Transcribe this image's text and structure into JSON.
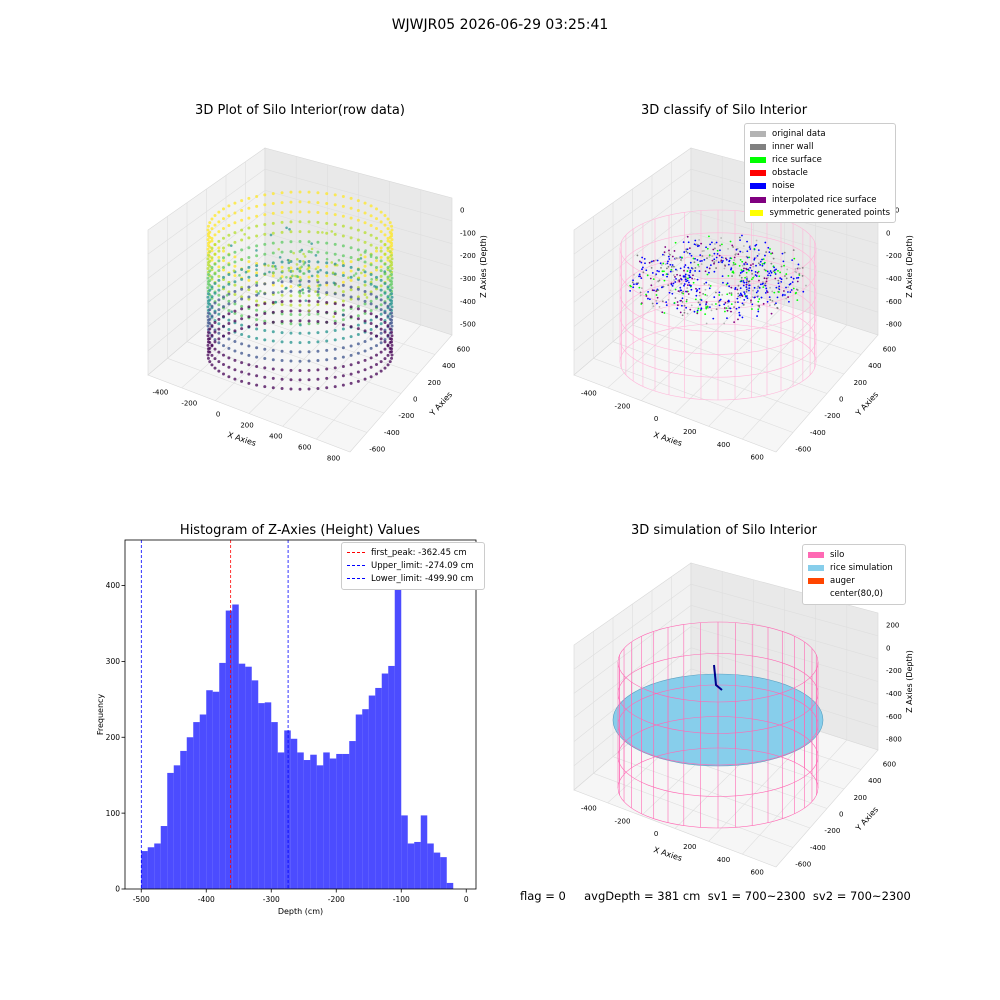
{
  "figure": {
    "suptitle": "WJWJR05 2026-06-29 03:25:41",
    "footer": "flag = 0     avgDepth = 381 cm  sv1 = 700~2300  sv2 = 700~2300"
  },
  "panels": {
    "raw": {
      "title": "3D Plot of Silo Interior(row data)",
      "xlabel": "X Axies",
      "ylabel": "Y Axies",
      "zlabel": "Z Axies (Depth)",
      "xticks": [
        "-400",
        "-200",
        "0",
        "200",
        "400",
        "600",
        "800"
      ],
      "yticks": [
        "-600",
        "-400",
        "-200",
        "0",
        "200",
        "400",
        "600"
      ],
      "zticks": [
        "0",
        "-100",
        "-200",
        "-300",
        "-400",
        "-500"
      ]
    },
    "classify": {
      "title": "3D classify of Silo Interior",
      "xlabel": "X Axies",
      "ylabel": "Y Axies",
      "zlabel": "Z Axies (Depth)",
      "xticks": [
        "-400",
        "-200",
        "0",
        "200",
        "400",
        "600"
      ],
      "yticks": [
        "-600",
        "-400",
        "-200",
        "0",
        "200",
        "400",
        "600"
      ],
      "zticks": [
        "200",
        "0",
        "-200",
        "-400",
        "-600",
        "-800"
      ],
      "legend": [
        {
          "label": "original data",
          "color": "#b3b3b3"
        },
        {
          "label": "inner wall",
          "color": "#808080"
        },
        {
          "label": "rice surface",
          "color": "#00ff00"
        },
        {
          "label": "obstacle",
          "color": "#ff0000"
        },
        {
          "label": "noise",
          "color": "#0000ff"
        },
        {
          "label": "interpolated rice surface",
          "color": "#800080"
        },
        {
          "label": "symmetric generated points",
          "color": "#ffff00"
        }
      ]
    },
    "histogram": {
      "title": "Histogram of Z-Axies (Height) Values",
      "xlabel": "Depth (cm)",
      "ylabel": "Frequency",
      "xticks": [
        "-500",
        "-400",
        "-300",
        "-200",
        "-100",
        "0"
      ],
      "yticks": [
        "0",
        "100",
        "200",
        "300",
        "400"
      ],
      "legend": [
        {
          "label": "first_peak: -362.45 cm",
          "color": "#ff0000"
        },
        {
          "label": "Upper_limit: -274.09 cm",
          "color": "#0000ff"
        },
        {
          "label": "Lower_limit: -499.90 cm",
          "color": "#0000ff"
        }
      ]
    },
    "simulation": {
      "title": "3D simulation of Silo Interior",
      "xlabel": "X Axies",
      "ylabel": "Y Axies",
      "zlabel": "Z Axies (Depth)",
      "xticks": [
        "-400",
        "-200",
        "0",
        "200",
        "400",
        "600"
      ],
      "yticks": [
        "-600",
        "-400",
        "-200",
        "0",
        "200",
        "400",
        "600"
      ],
      "zticks": [
        "200",
        "0",
        "-200",
        "-400",
        "-600",
        "-800"
      ],
      "legend": [
        {
          "label": "silo",
          "color": "#ff69b4"
        },
        {
          "label": "rice simulation",
          "color": "#87ceeb"
        },
        {
          "label": "auger",
          "color": "#ff4500"
        },
        {
          "label": "center(80,0)",
          "color": ""
        }
      ]
    }
  },
  "chart_data": [
    {
      "type": "bar",
      "title": "Histogram of Z-Axies (Height) Values",
      "xlabel": "Depth (cm)",
      "ylabel": "Frequency",
      "xlim": [
        -525,
        15
      ],
      "ylim": [
        0,
        460
      ],
      "bin_start": -500,
      "bin_width": 10,
      "color": "#0000ff",
      "values": [
        50,
        55,
        60,
        83,
        153,
        163,
        182,
        200,
        220,
        230,
        262,
        260,
        298,
        367,
        375,
        297,
        293,
        275,
        245,
        246,
        220,
        180,
        209,
        198,
        180,
        170,
        177,
        163,
        180,
        172,
        178,
        178,
        195,
        230,
        237,
        255,
        265,
        284,
        294,
        432,
        97,
        60,
        62,
        97,
        60,
        48,
        42,
        8
      ],
      "vlines": [
        {
          "name": "first_peak",
          "x": -362.45,
          "color": "#ff0000"
        },
        {
          "name": "Upper_limit",
          "x": -274.09,
          "color": "#0000ff"
        },
        {
          "name": "Lower_limit",
          "x": -499.9,
          "color": "#0000ff"
        }
      ]
    }
  ]
}
